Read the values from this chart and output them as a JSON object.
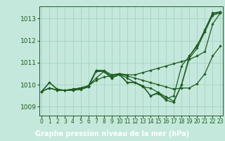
{
  "background_color": "#c5e8dc",
  "plot_bg_color": "#c5e8dc",
  "xlabel_bg_color": "#2d6b3c",
  "grid_color": "#9ecfbd",
  "line_color": "#1e5c20",
  "marker_color": "#1e5c20",
  "xlabel": "Graphe pression niveau de la mer (hPa)",
  "xlabel_fontsize": 7,
  "ytick_fontsize": 6.5,
  "xtick_fontsize": 5.5,
  "yticks": [
    1009,
    1010,
    1011,
    1012,
    1013
  ],
  "xticks": [
    0,
    1,
    2,
    3,
    4,
    5,
    6,
    7,
    8,
    9,
    10,
    11,
    12,
    13,
    14,
    15,
    16,
    17,
    18,
    19,
    20,
    21,
    22,
    23
  ],
  "ylim": [
    1008.6,
    1013.55
  ],
  "xlim": [
    -0.3,
    23.3
  ],
  "series": [
    [
      1009.7,
      1010.1,
      1009.8,
      1009.75,
      1009.75,
      1009.8,
      1009.9,
      1010.65,
      1010.6,
      1010.3,
      1010.5,
      1010.1,
      1010.1,
      1009.95,
      1009.5,
      1009.65,
      1009.45,
      1009.25,
      1010.0,
      1011.3,
      1011.75,
      1012.5,
      1013.25,
      1013.3
    ],
    [
      1009.7,
      1009.85,
      1009.75,
      1009.75,
      1009.8,
      1009.85,
      1009.95,
      1010.2,
      1010.35,
      1010.4,
      1010.5,
      1010.45,
      1010.45,
      1010.55,
      1010.65,
      1010.75,
      1010.85,
      1010.95,
      1011.05,
      1011.15,
      1011.3,
      1011.5,
      1012.75,
      1013.25
    ],
    [
      1009.7,
      1009.85,
      1009.75,
      1009.75,
      1009.8,
      1009.85,
      1009.95,
      1010.65,
      1010.65,
      1010.45,
      1010.5,
      1010.4,
      1010.3,
      1010.2,
      1010.1,
      1010.0,
      1009.9,
      1009.8,
      1009.85,
      1009.85,
      1010.05,
      1010.5,
      1011.3,
      1011.75
    ],
    [
      1009.7,
      1009.85,
      1009.75,
      1009.75,
      1009.78,
      1009.85,
      1009.95,
      1010.3,
      1010.6,
      1010.4,
      1010.5,
      1010.3,
      1010.1,
      1009.9,
      1009.85,
      1009.65,
      1009.35,
      1009.5,
      1010.85,
      1011.3,
      1011.8,
      1012.4,
      1013.2,
      1013.3
    ],
    [
      1009.7,
      1010.1,
      1009.78,
      1009.75,
      1009.75,
      1009.78,
      1009.9,
      1010.6,
      1010.6,
      1010.3,
      1010.45,
      1010.1,
      1010.1,
      1009.95,
      1009.5,
      1009.6,
      1009.3,
      1009.2,
      1010.0,
      1011.2,
      1011.65,
      1012.4,
      1013.15,
      1013.25
    ]
  ]
}
